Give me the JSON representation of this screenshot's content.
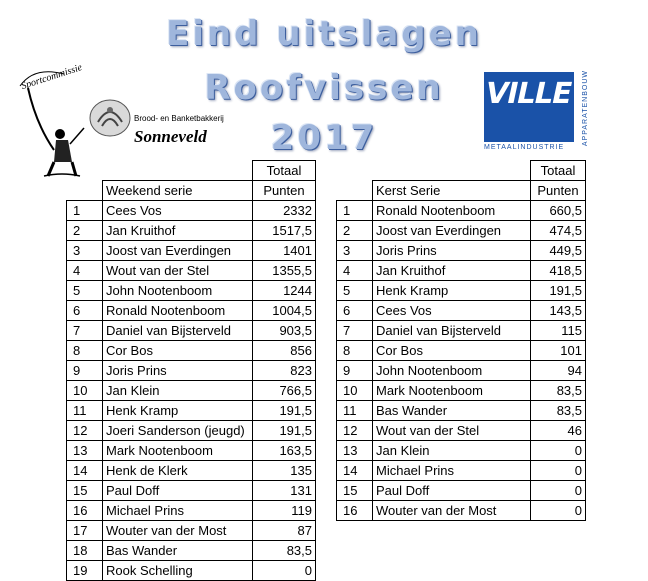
{
  "title": {
    "line1": "Eind uitslagen",
    "line2": "Roofvissen",
    "line3": "2017"
  },
  "logos": {
    "sportcommissie": "Sportcommissie",
    "bakery_line1": "Brood- en Banketbakkerij",
    "bakery_line2": "Sonneveld",
    "ville": "VILLE",
    "ville_side": "APPARATENBOUW",
    "ville_caption": "METAALINDUSTRIE"
  },
  "weekend": {
    "header_total": "Totaal",
    "header_name": "Weekend serie",
    "header_points": "Punten",
    "rows": [
      {
        "rank": "1",
        "name": "Cees Vos",
        "points": "2332"
      },
      {
        "rank": "2",
        "name": "Jan Kruithof",
        "points": "1517,5"
      },
      {
        "rank": "3",
        "name": "Joost van Everdingen",
        "points": "1401"
      },
      {
        "rank": "4",
        "name": "Wout van der Stel",
        "points": "1355,5"
      },
      {
        "rank": "5",
        "name": "John Nootenboom",
        "points": "1244"
      },
      {
        "rank": "6",
        "name": "Ronald Nootenboom",
        "points": "1004,5"
      },
      {
        "rank": "7",
        "name": "Daniel van Bijsterveld",
        "points": "903,5"
      },
      {
        "rank": "8",
        "name": "Cor Bos",
        "points": "856"
      },
      {
        "rank": "9",
        "name": "Joris Prins",
        "points": "823"
      },
      {
        "rank": "10",
        "name": "Jan Klein",
        "points": "766,5"
      },
      {
        "rank": "11",
        "name": "Henk Kramp",
        "points": "191,5"
      },
      {
        "rank": "12",
        "name": "Joeri Sanderson (jeugd)",
        "points": "191,5"
      },
      {
        "rank": "13",
        "name": "Mark Nootenboom",
        "points": "163,5"
      },
      {
        "rank": "14",
        "name": "Henk de Klerk",
        "points": "135"
      },
      {
        "rank": "15",
        "name": "Paul Doff",
        "points": "131"
      },
      {
        "rank": "16",
        "name": "Michael Prins",
        "points": "119"
      },
      {
        "rank": "17",
        "name": "Wouter van der Most",
        "points": "87"
      },
      {
        "rank": "18",
        "name": "Bas Wander",
        "points": "83,5"
      },
      {
        "rank": "19",
        "name": "Rook Schelling",
        "points": "0"
      }
    ]
  },
  "kerst": {
    "header_total": "Totaal",
    "header_name": "Kerst Serie",
    "header_points": "Punten",
    "rows": [
      {
        "rank": "1",
        "name": "Ronald Nootenboom",
        "points": "660,5"
      },
      {
        "rank": "2",
        "name": "Joost van Everdingen",
        "points": "474,5"
      },
      {
        "rank": "3",
        "name": "Joris Prins",
        "points": "449,5"
      },
      {
        "rank": "4",
        "name": "Jan Kruithof",
        "points": "418,5"
      },
      {
        "rank": "5",
        "name": "Henk Kramp",
        "points": "191,5"
      },
      {
        "rank": "6",
        "name": "Cees Vos",
        "points": "143,5"
      },
      {
        "rank": "7",
        "name": "Daniel van Bijsterveld",
        "points": "115"
      },
      {
        "rank": "8",
        "name": "Cor Bos",
        "points": "101"
      },
      {
        "rank": "9",
        "name": "John Nootenboom",
        "points": "94"
      },
      {
        "rank": "10",
        "name": "Mark Nootenboom",
        "points": "83,5"
      },
      {
        "rank": "11",
        "name": "Bas Wander",
        "points": "83,5"
      },
      {
        "rank": "12",
        "name": "Wout van der Stel",
        "points": "46"
      },
      {
        "rank": "13",
        "name": "Jan Klein",
        "points": "0"
      },
      {
        "rank": "14",
        "name": "Michael Prins",
        "points": "0"
      },
      {
        "rank": "15",
        "name": "Paul Doff",
        "points": "0"
      },
      {
        "rank": "16",
        "name": "Wouter van der Most",
        "points": "0"
      }
    ]
  },
  "colors": {
    "title": "#9fb6dc",
    "ville_blue": "#1a52a8"
  }
}
